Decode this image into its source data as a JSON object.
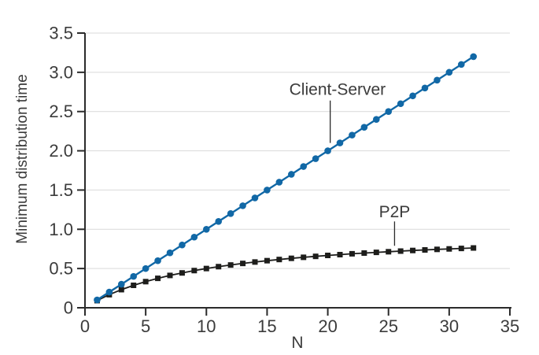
{
  "figure": {
    "background": "#ffffff"
  },
  "colors": {
    "axis": "#2b2b2b",
    "grid": "#d9d9d9",
    "text": "#3b3b3b",
    "client_server": "#1168a6",
    "p2p": "#1d1d1b",
    "leader_line": "#2b2b2b"
  },
  "chart_data": {
    "type": "line",
    "title": "",
    "xlabel": "N",
    "ylabel": "Minimum distribution time",
    "xlim": [
      0,
      35
    ],
    "ylim": [
      0,
      3.5
    ],
    "grid": "horizontal-only",
    "legend": "inline-annotations",
    "xticks": {
      "values": [
        0,
        5,
        10,
        15,
        20,
        25,
        30,
        35
      ],
      "labels": [
        "0",
        "5",
        "10",
        "15",
        "20",
        "25",
        "30",
        "35"
      ]
    },
    "yticks": {
      "values": [
        0,
        0.5,
        1.0,
        1.5,
        2.0,
        2.5,
        3.0,
        3.5
      ],
      "labels": [
        "0",
        "0.5",
        "1.0",
        "1.5",
        "2.0",
        "2.5",
        "3.0",
        "3.5"
      ]
    },
    "x": [
      1,
      2,
      3,
      4,
      5,
      6,
      7,
      8,
      9,
      10,
      11,
      12,
      13,
      14,
      15,
      16,
      17,
      18,
      19,
      20,
      21,
      22,
      23,
      24,
      25,
      26,
      27,
      28,
      29,
      30,
      31,
      32
    ],
    "series": [
      {
        "name": "P2P",
        "color": "#1d1d1b",
        "marker": "square",
        "line_width": 1.8,
        "values": [
          0.091,
          0.167,
          0.231,
          0.286,
          0.333,
          0.375,
          0.412,
          0.444,
          0.474,
          0.5,
          0.524,
          0.545,
          0.565,
          0.583,
          0.6,
          0.615,
          0.63,
          0.643,
          0.655,
          0.667,
          0.677,
          0.688,
          0.697,
          0.706,
          0.714,
          0.722,
          0.73,
          0.737,
          0.744,
          0.75,
          0.756,
          0.762
        ]
      },
      {
        "name": "Client-Server",
        "color": "#1168a6",
        "marker": "circle",
        "line_width": 2.4,
        "values": [
          0.1,
          0.2,
          0.3,
          0.4,
          0.5,
          0.6,
          0.7,
          0.8,
          0.9,
          1.0,
          1.1,
          1.2,
          1.3,
          1.4,
          1.5,
          1.6,
          1.7,
          1.8,
          1.9,
          2.0,
          2.1,
          2.2,
          2.3,
          2.4,
          2.5,
          2.6,
          2.7,
          2.8,
          2.9,
          3.0,
          3.1,
          3.2
        ]
      }
    ],
    "annotations": [
      {
        "text": "Client-Server",
        "text_x": 20.8,
        "text_y": 2.78,
        "line_x": 20.2,
        "line_y_from": 2.64,
        "line_y_to": 2.1
      },
      {
        "text": "P2P",
        "text_x": 25.5,
        "text_y": 1.22,
        "line_x": 25.5,
        "line_y_from": 1.1,
        "line_y_to": 0.79
      }
    ]
  }
}
